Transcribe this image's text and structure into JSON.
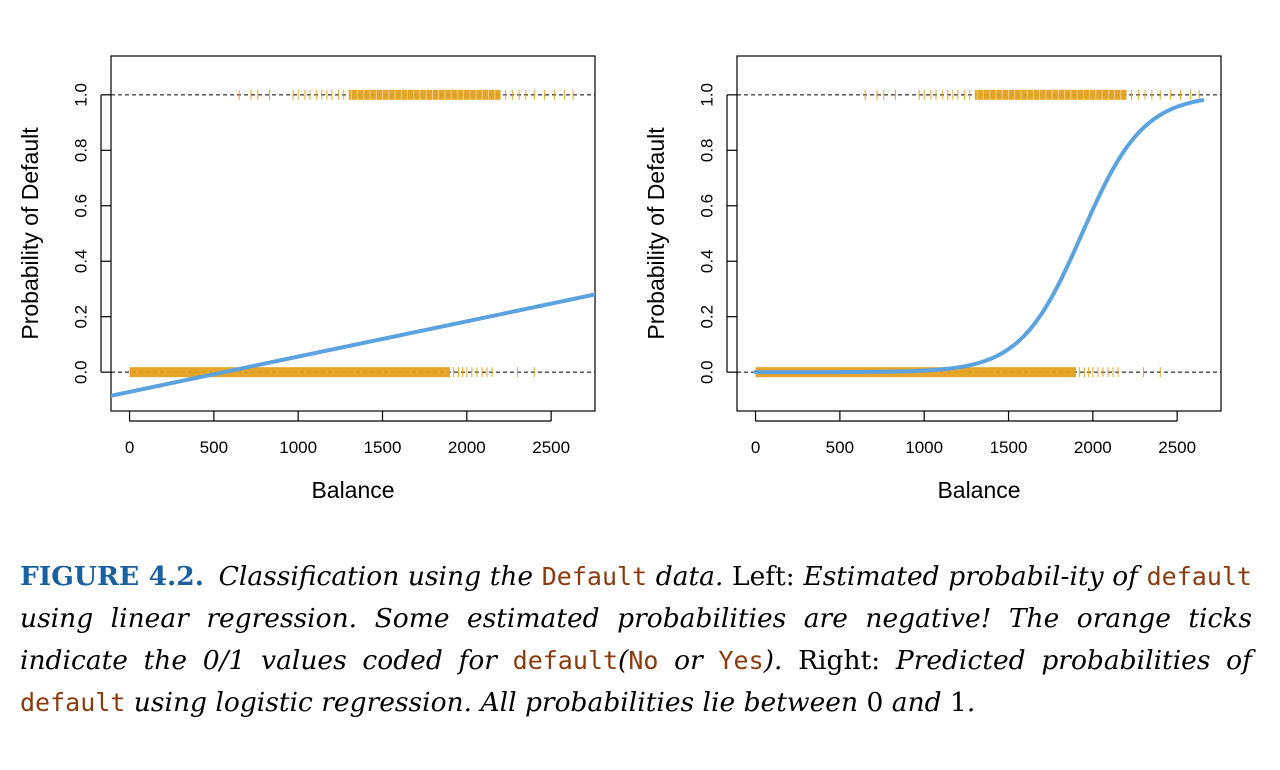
{
  "chart_data": [
    {
      "type": "line",
      "panel": "Left",
      "xlabel": "Balance",
      "ylabel": "Probability of Default",
      "xlim": [
        -110,
        2760
      ],
      "ylim": [
        -0.14,
        1.14
      ],
      "xticks": [
        0,
        500,
        1000,
        1500,
        2000,
        2500
      ],
      "yticks": [
        0.0,
        0.2,
        0.4,
        0.6,
        0.8,
        1.0
      ],
      "hlines": [
        0,
        1
      ],
      "fit": {
        "name": "linear regression",
        "x": [
          -110,
          2760
        ],
        "y": [
          -0.085,
          0.28
        ]
      },
      "ticks_no": {
        "y": 0,
        "dense_range": [
          0,
          1900
        ],
        "sparse": [
          1920,
          1950,
          1975,
          2000,
          2030,
          2060,
          2090,
          2120,
          2150,
          2300,
          2400
        ]
      },
      "ticks_yes": {
        "y": 1,
        "dense_range": [
          1300,
          2200
        ],
        "sparse": [
          650,
          720,
          760,
          830,
          970,
          1000,
          1040,
          1070,
          1110,
          1140,
          1170,
          1200,
          1240,
          1270,
          2230,
          2270,
          2310,
          2350,
          2400,
          2460,
          2520,
          2580,
          2630
        ]
      }
    },
    {
      "type": "line",
      "panel": "Right",
      "xlabel": "Balance",
      "ylabel": "Probability of Default",
      "xlim": [
        -110,
        2760
      ],
      "ylim": [
        -0.14,
        1.14
      ],
      "xticks": [
        0,
        500,
        1000,
        1500,
        2000,
        2500
      ],
      "yticks": [
        0.0,
        0.2,
        0.4,
        0.6,
        0.8,
        1.0
      ],
      "hlines": [
        0,
        1
      ],
      "fit": {
        "name": "logistic regression",
        "x_range": [
          0,
          2650
        ],
        "b0": -10.65,
        "b1": 0.0055
      },
      "ticks_no": {
        "y": 0,
        "dense_range": [
          0,
          1900
        ],
        "sparse": [
          1920,
          1950,
          1975,
          2000,
          2030,
          2060,
          2090,
          2120,
          2150,
          2300,
          2400
        ]
      },
      "ticks_yes": {
        "y": 1,
        "dense_range": [
          1300,
          2200
        ],
        "sparse": [
          650,
          720,
          760,
          830,
          970,
          1000,
          1040,
          1070,
          1110,
          1140,
          1170,
          1200,
          1240,
          1270,
          2230,
          2270,
          2310,
          2350,
          2400,
          2460,
          2520,
          2580,
          2630
        ]
      }
    }
  ],
  "colors": {
    "fit_line": "#5ba3e0",
    "ticks": "#e3a01c",
    "caption_figure": "#1a5f9e",
    "caption_code": "#8b3a0e"
  },
  "caption": {
    "figure": "FIGURE 4.2.",
    "p1": "Classification using the",
    "c1": "Default",
    "p2": "data.",
    "p3": "Left:",
    "p4": "Estimated probabil-ity of",
    "c2": "default",
    "p5": "using linear regression. Some estimated probabilities are negative! The orange ticks indicate the 0/1 values coded for",
    "c3": "default",
    "p6": "(",
    "c4": "No",
    "p7": "or",
    "c5": "Yes",
    "p8": ").",
    "p9": "Right:",
    "p10": "Predicted probabilities of",
    "c6": "default",
    "p11": "using logistic regression. All probabilities lie between",
    "p12": "0",
    "p13": "and",
    "p14": "1",
    "p15": "."
  }
}
